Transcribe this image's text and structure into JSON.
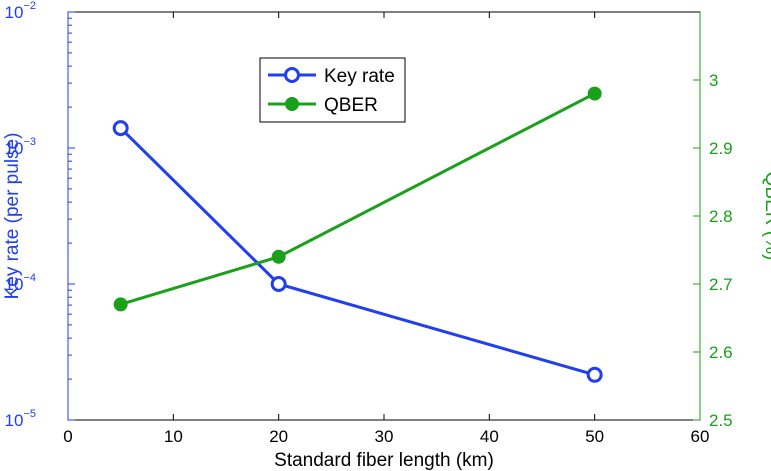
{
  "chart_data": {
    "type": "line",
    "xlabel": "Standard fiber length (km)",
    "ylabel_left": "Key rate (per pulse)",
    "ylabel_right": "QBER (%)",
    "xlim": [
      0,
      60
    ],
    "x_ticks": [
      0,
      10,
      20,
      30,
      40,
      50,
      60
    ],
    "x_tick_labels": [
      "0",
      "10",
      "20",
      "30",
      "40",
      "50",
      "60"
    ],
    "y_left_scale": "log",
    "y_left_lim": [
      1e-05,
      0.01
    ],
    "y_left_ticks": [
      {
        "value": 1e-05,
        "base": "10",
        "exp": "−5"
      },
      {
        "value": 0.0001,
        "base": "10",
        "exp": "−4"
      },
      {
        "value": 0.001,
        "base": "10",
        "exp": "−3"
      },
      {
        "value": 0.01,
        "base": "10",
        "exp": "−2"
      }
    ],
    "y_right_lim": [
      2.5,
      3.1
    ],
    "y_right_ticks": [
      2.5,
      2.6,
      2.7,
      2.8,
      2.9,
      3.0
    ],
    "y_right_tick_labels": [
      "2.5",
      "2.6",
      "2.7",
      "2.8",
      "2.9",
      "3"
    ],
    "series": [
      {
        "name": "Key rate",
        "axis": "left",
        "color": "#1f3ff0",
        "marker": "open-circle",
        "x": [
          5,
          20,
          50
        ],
        "y": [
          0.0014,
          0.0001,
          2.15e-05
        ]
      },
      {
        "name": "QBER",
        "axis": "right",
        "color": "#1aa01a",
        "marker": "filled-circle",
        "x": [
          5,
          20,
          50
        ],
        "y": [
          2.67,
          2.74,
          2.98
        ]
      }
    ],
    "legend": {
      "position": "upper-center",
      "entries": [
        "Key rate",
        "QBER"
      ]
    },
    "axis_color_left": "#1f3ff0",
    "axis_color_right": "#1aa01a"
  }
}
